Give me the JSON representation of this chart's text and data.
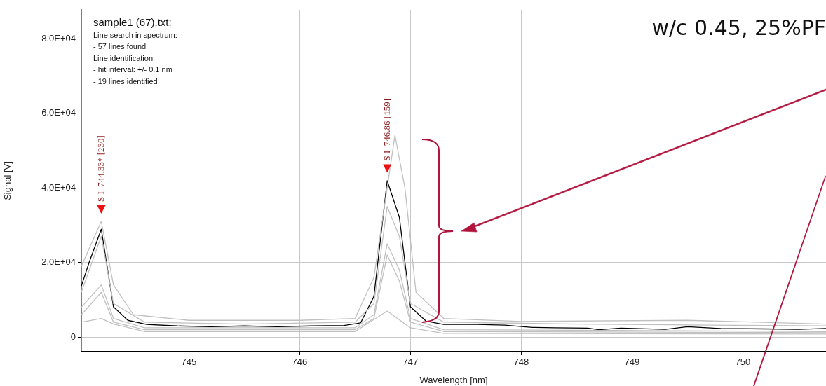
{
  "chart_data": {
    "type": "line",
    "title": "sample1 (67).txt:",
    "subtitle": "w/c 0.45, 25%PF",
    "xlabel": "Wavelength [nm]",
    "ylabel": "Signal [V]",
    "xlim": [
      744.03,
      750.75
    ],
    "xticks": [
      745,
      746,
      747,
      748,
      749,
      750
    ],
    "ylim": [
      -3900,
      87700
    ],
    "yticks": [
      {
        "value": 0,
        "label": "0"
      },
      {
        "value": 20000,
        "label": "2.0E+04"
      },
      {
        "value": 40000,
        "label": "4.0E+04"
      },
      {
        "value": 60000,
        "label": "6.0E+04"
      },
      {
        "value": 80000,
        "label": "8.0E+04"
      }
    ],
    "grid": true,
    "legend": false,
    "marker": "none",
    "line_style": "solid",
    "series": [
      {
        "color": "#c0c0c0",
        "x": [
          744.03,
          744.21,
          744.32,
          744.5,
          745,
          746,
          746.5,
          746.67,
          746.86,
          746.95,
          747.05,
          747.3,
          748,
          749.5,
          750.75
        ],
        "values": [
          19000,
          31000,
          14000,
          6000,
          4500,
          4500,
          5000,
          16000,
          54100,
          40000,
          12000,
          5000,
          4200,
          4500,
          3500
        ]
      },
      {
        "color": "#c0c0c0",
        "x": [
          744.03,
          744.21,
          744.32,
          744.6,
          745.5,
          746.5,
          746.67,
          746.79,
          746.9,
          747.0,
          747.3,
          748.5,
          750.75
        ],
        "values": [
          12000,
          27000,
          9000,
          4000,
          3500,
          4000,
          9000,
          35000,
          27000,
          9000,
          4000,
          3500,
          3000
        ]
      },
      {
        "color": "#c0c0c0",
        "x": [
          744.03,
          744.21,
          744.32,
          744.6,
          746.5,
          746.67,
          746.79,
          746.9,
          747.0,
          747.3,
          750.75
        ],
        "values": [
          8000,
          14000,
          5000,
          2500,
          2500,
          6000,
          25000,
          18000,
          5000,
          2000,
          1500
        ]
      },
      {
        "color": "#c0c0c0",
        "x": [
          744.03,
          744.21,
          744.32,
          744.6,
          746.5,
          746.67,
          746.79,
          746.9,
          747.0,
          747.3,
          750.75
        ],
        "values": [
          6000,
          12000,
          4000,
          2000,
          2000,
          5000,
          22000,
          15000,
          4000,
          1500,
          1200
        ]
      },
      {
        "color": "#c0c0c0",
        "x": [
          744.03,
          744.21,
          744.32,
          744.6,
          746.5,
          746.79,
          747.0,
          747.3,
          750.75
        ],
        "values": [
          4000,
          5000,
          3500,
          1500,
          1500,
          7000,
          2500,
          1000,
          800
        ]
      },
      {
        "color": "#000000",
        "x": [
          744.03,
          744.1,
          744.21,
          744.32,
          744.45,
          744.62,
          744.9,
          745.2,
          745.5,
          745.8,
          746.1,
          746.4,
          746.55,
          746.67,
          746.79,
          746.9,
          747.0,
          747.14,
          747.3,
          747.6,
          747.85,
          748.1,
          748.3,
          748.6,
          748.7,
          748.9,
          749.3,
          749.5,
          749.8,
          750.2,
          750.5,
          750.75
        ],
        "values": [
          13700,
          20000,
          28900,
          8100,
          4500,
          3400,
          3000,
          2800,
          3000,
          2800,
          3000,
          3100,
          3800,
          10900,
          41900,
          32100,
          8100,
          4300,
          3400,
          3400,
          3200,
          2600,
          2500,
          2400,
          2000,
          2400,
          2100,
          2800,
          2300,
          2200,
          2100,
          2300
        ]
      }
    ],
    "annotations": [
      "Line search in spectrum:",
      "- 57 lines found",
      "Line identification:",
      "- hit interval: +/- 0.1 nm",
      "- 19 lines identified",
      {
        "text": "S I  744.33* [230]",
        "x": 744.21,
        "y": 34000
      },
      {
        "text": "S I  746.86 [159]",
        "x": 746.79,
        "y": 45000
      }
    ]
  }
}
